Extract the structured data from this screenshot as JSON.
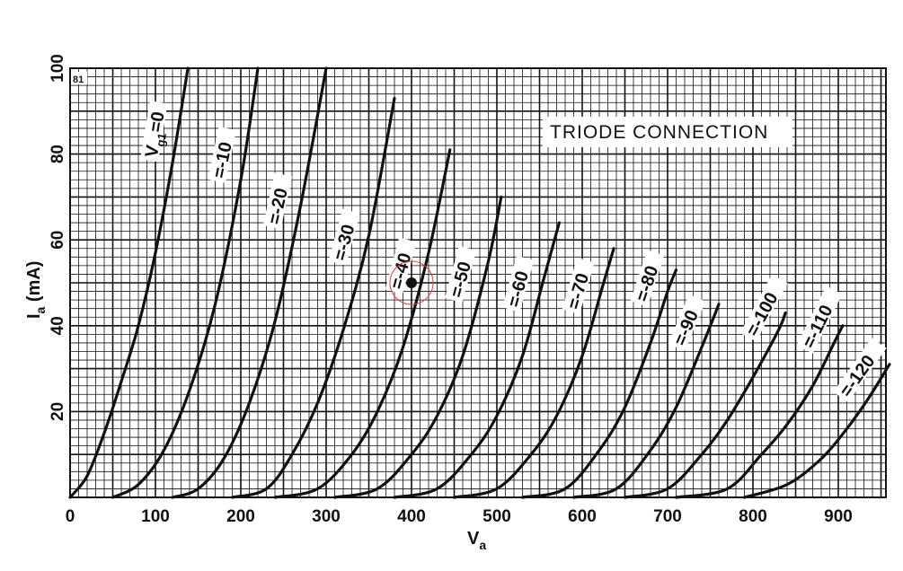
{
  "chart_data": {
    "type": "line",
    "title": "",
    "annotation": "TRIODE CONNECTION",
    "figure_number": "81",
    "xlabel_main": "V",
    "xlabel_sub": "a",
    "ylabel_main": "I",
    "ylabel_sub": "a",
    "ylabel_unit": " (mA)",
    "xlim": [
      0,
      960
    ],
    "ylim": [
      0,
      100
    ],
    "x_ticks": [
      0,
      100,
      200,
      300,
      400,
      500,
      600,
      700,
      800,
      900
    ],
    "y_ticks": [
      20,
      40,
      60,
      80,
      100
    ],
    "grid": true,
    "series": [
      {
        "vg": 0,
        "x": [
          0,
          20,
          40,
          60,
          80,
          100,
          120,
          138
        ],
        "y": [
          0,
          5,
          15,
          27,
          40,
          57,
          78,
          100
        ]
      },
      {
        "vg": -10,
        "x": [
          50,
          80,
          110,
          140,
          170,
          200,
          220
        ],
        "y": [
          0,
          3,
          11,
          25,
          45,
          74,
          100
        ]
      },
      {
        "vg": -20,
        "x": [
          120,
          150,
          180,
          210,
          240,
          270,
          300
        ],
        "y": [
          0,
          2,
          9,
          22,
          41,
          68,
          100
        ]
      },
      {
        "vg": -30,
        "x": [
          190,
          230,
          260,
          290,
          320,
          350,
          380
        ],
        "y": [
          0,
          2,
          10,
          22,
          39,
          61,
          93
        ]
      },
      {
        "vg": -40,
        "x": [
          240,
          290,
          330,
          360,
          390,
          420,
          445
        ],
        "y": [
          0,
          2,
          10,
          20,
          35,
          57,
          81
        ]
      },
      {
        "vg": -50,
        "x": [
          310,
          360,
          400,
          430,
          460,
          490,
          505
        ],
        "y": [
          0,
          2,
          10,
          19,
          33,
          55,
          70
        ]
      },
      {
        "vg": -60,
        "x": [
          380,
          430,
          470,
          500,
          530,
          555,
          573
        ],
        "y": [
          0,
          2,
          10,
          19,
          33,
          51,
          64
        ]
      },
      {
        "vg": -70,
        "x": [
          450,
          500,
          540,
          570,
          600,
          625,
          637
        ],
        "y": [
          0,
          2,
          10,
          19,
          33,
          50,
          58
        ]
      },
      {
        "vg": -80,
        "x": [
          530,
          580,
          620,
          650,
          680,
          700,
          710
        ],
        "y": [
          0,
          2,
          11,
          21,
          36,
          48,
          53
        ]
      },
      {
        "vg": -90,
        "x": [
          590,
          640,
          680,
          710,
          740,
          760
        ],
        "y": [
          0,
          2,
          11,
          21,
          35,
          45
        ]
      },
      {
        "vg": -100,
        "x": [
          650,
          700,
          740,
          770,
          800,
          830,
          838
        ],
        "y": [
          0,
          2,
          10,
          18,
          28,
          39,
          43
        ]
      },
      {
        "vg": -110,
        "x": [
          710,
          770,
          810,
          840,
          870,
          895,
          905
        ],
        "y": [
          0,
          2,
          10,
          17,
          26,
          36,
          40
        ]
      },
      {
        "vg": -120,
        "x": [
          790,
          840,
          880,
          910,
          935,
          960
        ],
        "y": [
          0,
          3,
          9,
          16,
          23,
          31
        ]
      }
    ],
    "curve_labels": [
      {
        "text": "V",
        "sub": "g1",
        "suffix": "=0"
      },
      {
        "text": "=-10"
      },
      {
        "text": "=-20"
      },
      {
        "text": "=-30"
      },
      {
        "text": "=-40"
      },
      {
        "text": "=-50"
      },
      {
        "text": "=-60"
      },
      {
        "text": "=-70"
      },
      {
        "text": "=-80"
      },
      {
        "text": "=-90"
      },
      {
        "text": "=-100"
      },
      {
        "text": "=-110"
      },
      {
        "text": "=-120"
      }
    ],
    "marker_point": {
      "x": 400,
      "y": 50
    },
    "colors": {
      "curve": "#111111",
      "grid": "#111111",
      "marker_ring": "#d94040"
    }
  }
}
